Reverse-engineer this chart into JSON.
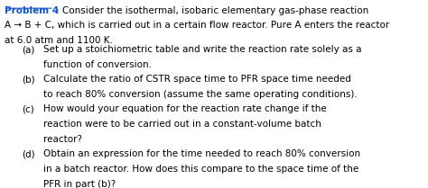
{
  "title_label": "Problem 4",
  "title_text": ": Consider the isothermal, isobaric elementary gas-phase reaction",
  "line2": "A → B + C, which is carried out in a certain flow reactor. Pure A enters the reactor",
  "line3": "at 6.0 atm and 1100 K.",
  "items": [
    {
      "label": "(a)",
      "lines": [
        "Set up a stoichiometric table and write the reaction rate solely as a",
        "function of conversion."
      ]
    },
    {
      "label": "(b)",
      "lines": [
        "Calculate the ratio of CSTR space time to PFR space time needed",
        "to reach 80% conversion (assume the same operating conditions)."
      ]
    },
    {
      "label": "(c)",
      "lines": [
        "How would your equation for the reaction rate change if the",
        "reaction were to be carried out in a constant-volume batch",
        "reactor?"
      ]
    },
    {
      "label": "(d)",
      "lines": [
        "Obtain an expression for the time needed to reach 80% conversion",
        "in a batch reactor. How does this compare to the space time of the",
        "PFR in part (b)?"
      ]
    }
  ],
  "bg_color": "#ffffff",
  "text_color": "#000000",
  "title_color": "#1155cc",
  "font_size": 7.5,
  "title_font_size": 7.5
}
